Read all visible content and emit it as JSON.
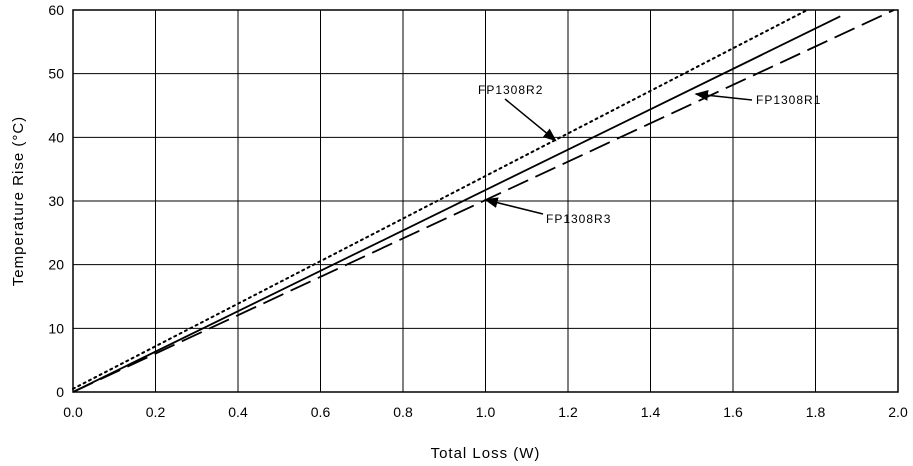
{
  "chart_data": {
    "type": "line",
    "title": "",
    "xlabel": "Total Loss (W)",
    "ylabel": "Temperature Rise (°C)",
    "xlim": [
      0,
      2.0
    ],
    "ylim": [
      0,
      60
    ],
    "x_ticks": [
      "0.0",
      "0.2",
      "0.4",
      "0.6",
      "0.8",
      "1.0",
      "1.2",
      "1.4",
      "1.6",
      "1.8",
      "2.0"
    ],
    "y_ticks": [
      "0",
      "10",
      "20",
      "30",
      "40",
      "50",
      "60"
    ],
    "grid": true,
    "legend": "none",
    "series": [
      {
        "name": "FP1308R1",
        "style": "solid",
        "x": [
          0,
          1.86
        ],
        "y": [
          0,
          59
        ]
      },
      {
        "name": "FP1308R2",
        "style": "dotted",
        "x": [
          0,
          1.78
        ],
        "y": [
          0.5,
          60
        ]
      },
      {
        "name": "FP1308R3",
        "style": "dashed",
        "x": [
          0,
          1.99
        ],
        "y": [
          0,
          60
        ]
      }
    ],
    "annotations": [
      {
        "label": "FP1308R2",
        "series": "FP1308R2",
        "point": [
          1.17,
          39.5
        ]
      },
      {
        "label": "FP1308R1",
        "series": "FP1308R1",
        "point": [
          1.51,
          46.8
        ]
      },
      {
        "label": "FP1308R3",
        "series": "FP1308R3",
        "point": [
          1.0,
          30.2
        ]
      }
    ]
  }
}
